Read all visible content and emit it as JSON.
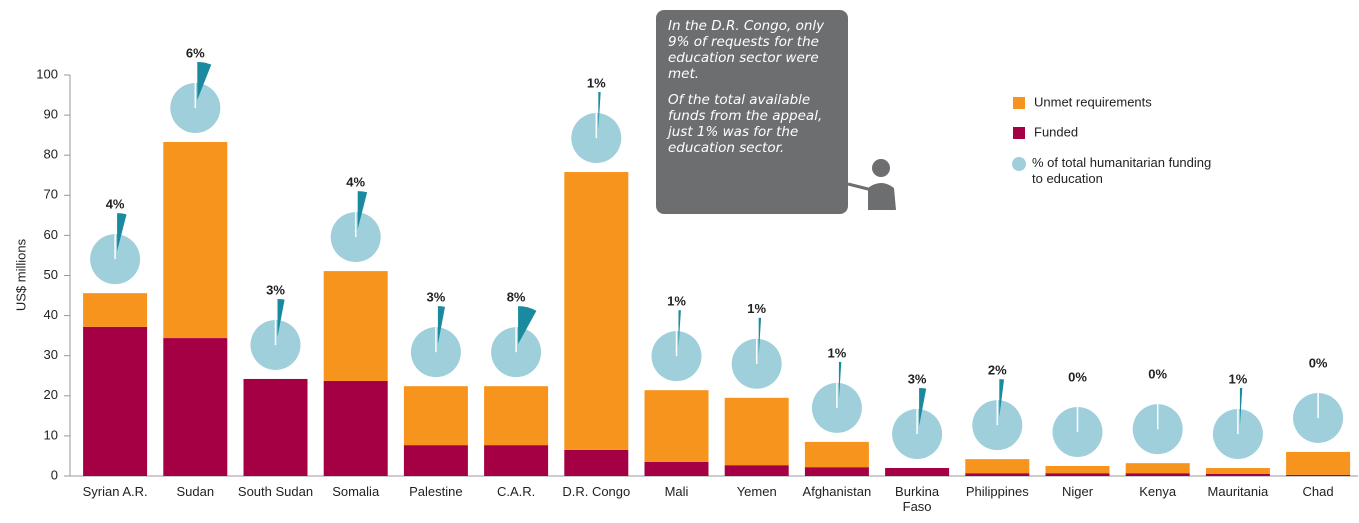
{
  "chart_data": {
    "type": "bar",
    "stacked": true,
    "ylabel": "US$ millions",
    "categories": [
      "Syrian A.R.",
      "Sudan",
      "South Sudan",
      "Somalia",
      "Palestine",
      "C.A.R.",
      "D.R. Congo",
      "Mali",
      "Yemen",
      "Afghanistan",
      "Burkina Faso",
      "Philippines",
      "Niger",
      "Kenya",
      "Mauritania",
      "Chad"
    ],
    "series": [
      {
        "name": "Funded",
        "color": "#a50044",
        "values": [
          37.2,
          34.4,
          24.2,
          23.7,
          7.7,
          7.7,
          6.5,
          3.5,
          2.7,
          2.2,
          2.0,
          0.7,
          0.7,
          0.7,
          0.5,
          0.3
        ]
      },
      {
        "name": "Unmet requirements",
        "color": "#f7941d",
        "values": [
          8.4,
          48.9,
          0,
          27.4,
          14.7,
          14.7,
          69.3,
          17.9,
          16.8,
          6.3,
          0,
          3.5,
          1.8,
          2.5,
          1.5,
          5.7
        ]
      }
    ],
    "share": {
      "name": "% of total humanitarian funding to education",
      "color": "#9fcfdb",
      "slice_color": "#1a8a9e",
      "values": [
        4,
        6,
        3,
        4,
        3,
        8,
        1,
        1,
        1,
        1,
        3,
        2,
        0,
        0,
        1,
        0
      ],
      "value_labels": [
        "4%",
        "6%",
        "3%",
        "4%",
        "3%",
        "8%",
        "1%",
        "1%",
        "1%",
        "1%",
        "3%",
        "2%",
        "0%",
        "0%",
        "1%",
        "0%"
      ]
    },
    "ylim": [
      0,
      100
    ],
    "yticks": [
      0,
      10,
      20,
      30,
      40,
      50,
      60,
      70,
      80,
      90,
      100
    ],
    "grid": false,
    "annotation": [
      "In the D.R. Congo, only 9% of requests for the education sector were met.",
      "Of the total available funds from the appeal, just 1% was for the education sector."
    ]
  }
}
